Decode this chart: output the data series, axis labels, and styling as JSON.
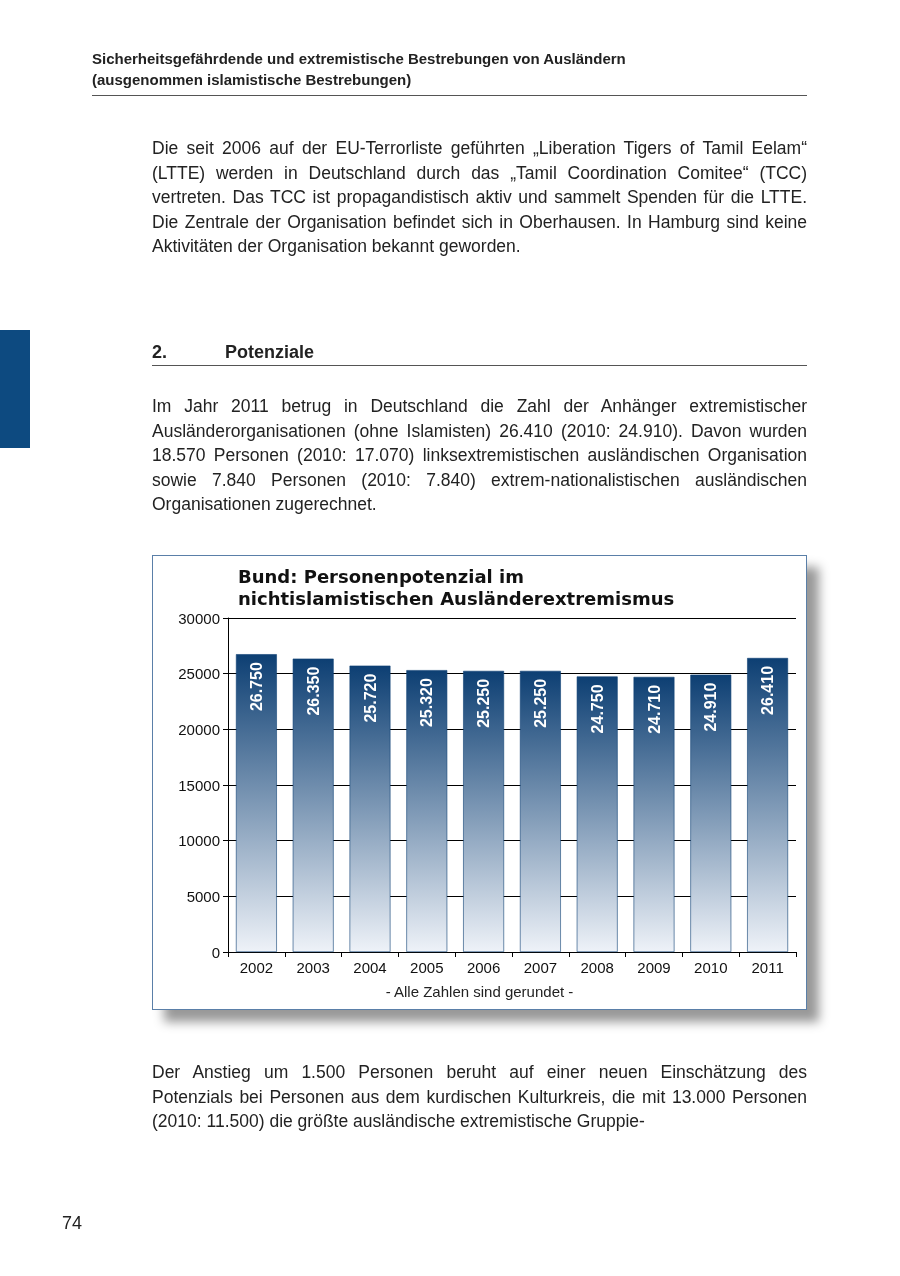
{
  "chart_data": {
    "type": "bar",
    "title": "Bund: Personenpotenzial im\nnichtislamistischen Ausländerextremismus",
    "categories": [
      "2002",
      "2003",
      "2004",
      "2005",
      "2006",
      "2007",
      "2008",
      "2009",
      "2010",
      "2011"
    ],
    "values": [
      26750,
      26350,
      25720,
      25320,
      25250,
      25250,
      24750,
      24710,
      24910,
      26410
    ],
    "value_labels": [
      "26.750",
      "26.350",
      "25.720",
      "25.320",
      "25.250",
      "25.250",
      "24.750",
      "24.710",
      "24.910",
      "26.410"
    ],
    "color": "#0d3f73",
    "ylim": [
      0,
      30000
    ],
    "yticks": [
      0,
      5000,
      10000,
      15000,
      20000,
      25000,
      30000
    ],
    "grid": "y",
    "annotations": [
      "Sicherheitsgefährdende und extremistische Bestrebungen von Ausländern",
      "(ausgenommen islamistische Bestrebungen)",
      "Die seit 2006 auf der EU-Terrorliste geführten „Liberation Tigers of Tamil Eelam“ (LTTE) werden in Deutschland durch das „Tamil Coordination Comitee“ (TCC) vertreten. Das TCC ist propagandistisch aktiv und sammelt Spenden für die LTTE. Die Zentrale der Organisation befindet sich in Oberhausen. In Hamburg sind keine Aktivitäten der Organisation bekannt geworden.",
      "2.",
      "Potenziale",
      "Im Jahr 2011 betrug in Deutschland die Zahl der Anhänger extremistischer Ausländerorganisationen (ohne Islamisten) 26.410 (2010: 24.910). Davon wurden 18.570 Personen (2010: 17.070) linksextremistischen ausländischen Organisation sowie 7.840 Personen (2010: 7.840) extrem-nationalistischen ausländischen Organisationen zugerechnet.",
      "- Alle Zahlen sind gerundet -",
      "Der Anstieg um 1.500 Personen beruht auf einer neuen Einschätzung des Potenzials bei Personen aus dem kurdischen Kulturkreis, die mit 13.000 Personen (2010: 11.500) die größte ausländische extremistische Gruppie-",
      "74"
    ]
  }
}
